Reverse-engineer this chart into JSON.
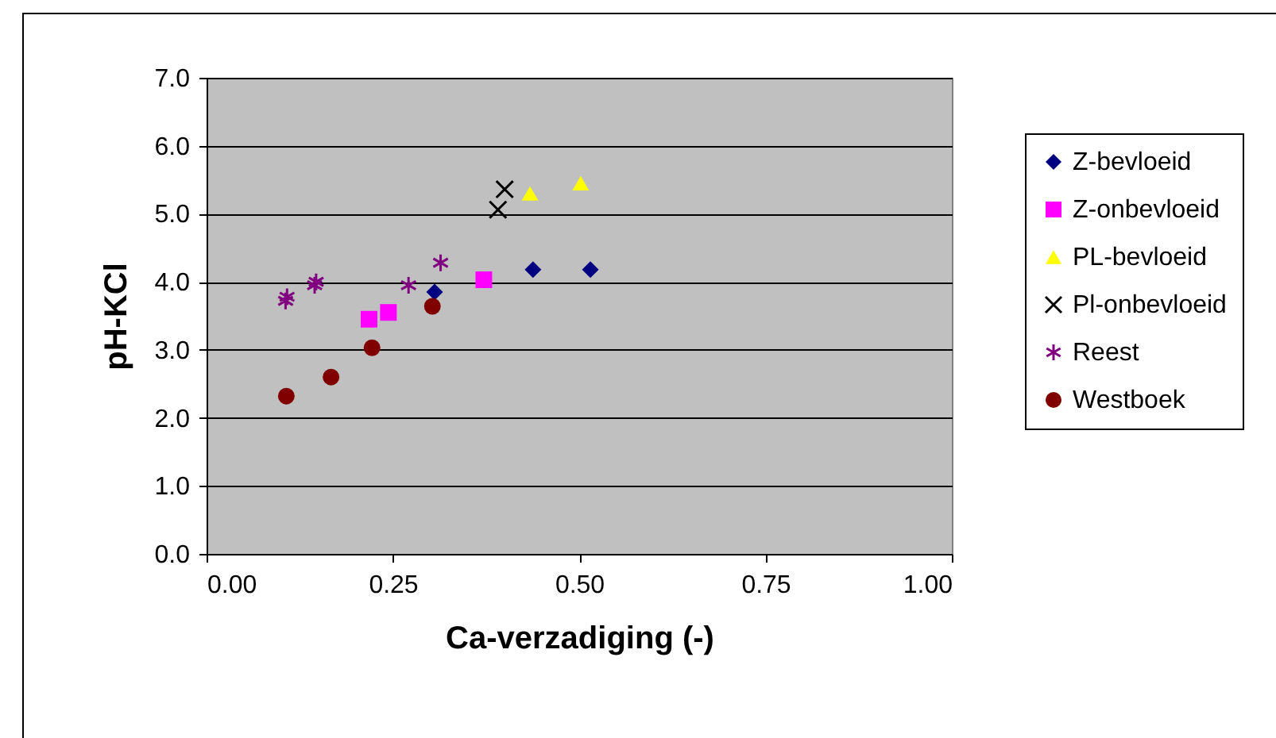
{
  "chart_data": {
    "type": "scatter",
    "xlabel": "Ca-verzadiging (-)",
    "ylabel": "pH-KCl",
    "xlim": [
      0,
      1
    ],
    "xticks": [
      {
        "value": 0,
        "label": "0.00"
      },
      {
        "value": 0.25,
        "label": "0.25"
      },
      {
        "value": 0.5,
        "label": "0.50"
      },
      {
        "value": 0.75,
        "label": "0.75"
      },
      {
        "value": 1,
        "label": "1.00"
      }
    ],
    "ylim": [
      0,
      7
    ],
    "yticks": [
      {
        "value": 0,
        "label": "0.0"
      },
      {
        "value": 1,
        "label": "1.0"
      },
      {
        "value": 2,
        "label": "2.0"
      },
      {
        "value": 3,
        "label": "3.0"
      },
      {
        "value": 4,
        "label": "4.0"
      },
      {
        "value": 5,
        "label": "5.0"
      },
      {
        "value": 6,
        "label": "6.0"
      },
      {
        "value": 7,
        "label": "7.0"
      }
    ],
    "grid": "y",
    "legend": "right",
    "series": [
      {
        "name": "Z-bevloeid",
        "color": "#000080",
        "marker": "diamond",
        "x": [
          0.306,
          0.438,
          0.515
        ],
        "values": [
          3.85,
          4.18,
          4.18
        ]
      },
      {
        "name": "Z-onbevloeid",
        "color": "#ff00ff",
        "marker": "square",
        "x": [
          0.218,
          0.244,
          0.372
        ],
        "values": [
          3.45,
          3.55,
          4.03
        ]
      },
      {
        "name": "PL-bevloeid",
        "color": "#ffff00",
        "marker": "triangle",
        "x": [
          0.434,
          0.502
        ],
        "values": [
          5.3,
          5.45
        ]
      },
      {
        "name": "Pl-onbevloeid",
        "color": "#000000",
        "marker": "cross",
        "x": [
          0.391,
          0.4
        ],
        "values": [
          5.06,
          5.36
        ]
      },
      {
        "name": "Reest",
        "color": "#800080",
        "marker": "cross",
        "x": [
          0.106,
          0.108,
          0.145,
          0.147,
          0.271,
          0.314
        ],
        "values": [
          3.72,
          3.78,
          3.95,
          4.0,
          3.95,
          4.28
        ]
      },
      {
        "name": "Westboek",
        "color": "#800000",
        "marker": "circle",
        "x": [
          0.107,
          0.167,
          0.222,
          0.303
        ],
        "values": [
          2.32,
          2.6,
          3.03,
          3.64
        ]
      }
    ]
  }
}
